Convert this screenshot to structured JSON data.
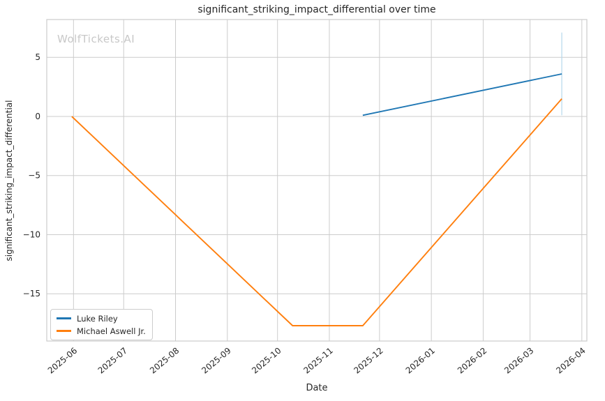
{
  "watermark": {
    "text": "WolfTickets.AI"
  },
  "chart_data": {
    "type": "line",
    "title": "significant_striking_impact_differential over time",
    "xlabel": "Date",
    "ylabel": "significant_striking_impact_differential",
    "grid": true,
    "legend_position": "lower-left",
    "xlim": [
      "2025-05-16",
      "2026-04-04"
    ],
    "ylim": [
      -19.0,
      8.2
    ],
    "x_ticks": [
      {
        "date": "2025-06-01",
        "label": "2025-06"
      },
      {
        "date": "2025-07-01",
        "label": "2025-07"
      },
      {
        "date": "2025-08-01",
        "label": "2025-08"
      },
      {
        "date": "2025-09-01",
        "label": "2025-09"
      },
      {
        "date": "2025-10-01",
        "label": "2025-10"
      },
      {
        "date": "2025-11-01",
        "label": "2025-11"
      },
      {
        "date": "2025-12-01",
        "label": "2025-12"
      },
      {
        "date": "2026-01-01",
        "label": "2026-01"
      },
      {
        "date": "2026-02-01",
        "label": "2026-02"
      },
      {
        "date": "2026-03-01",
        "label": "2026-03"
      },
      {
        "date": "2026-04-01",
        "label": "2026-04"
      }
    ],
    "y_ticks": [
      {
        "value": 5,
        "label": "5"
      },
      {
        "value": 0,
        "label": "0"
      },
      {
        "value": -5,
        "label": "−5"
      },
      {
        "value": -10,
        "label": "−10"
      },
      {
        "value": -15,
        "label": "−15"
      }
    ],
    "series": [
      {
        "name": "Luke Riley",
        "color": "#1f77b4",
        "points": [
          {
            "x": "2025-11-21",
            "y": 0.1
          },
          {
            "x": "2026-03-20",
            "y": 3.6
          }
        ]
      },
      {
        "name": "Michael Aswell Jr.",
        "color": "#ff7f0e",
        "points": [
          {
            "x": "2025-05-31",
            "y": 0.0
          },
          {
            "x": "2025-10-10",
            "y": -17.7
          },
          {
            "x": "2025-11-21",
            "y": -17.7
          },
          {
            "x": "2026-03-20",
            "y": 1.5
          }
        ]
      }
    ],
    "annotations": [
      {
        "type": "vertical-line",
        "x": "2026-03-20",
        "y_from": 0.1,
        "y_to": 7.1,
        "color": "#b5d7ec"
      }
    ],
    "colors": {
      "grid": "#cccccc",
      "spine": "#cccccc",
      "text": "#262626"
    }
  }
}
